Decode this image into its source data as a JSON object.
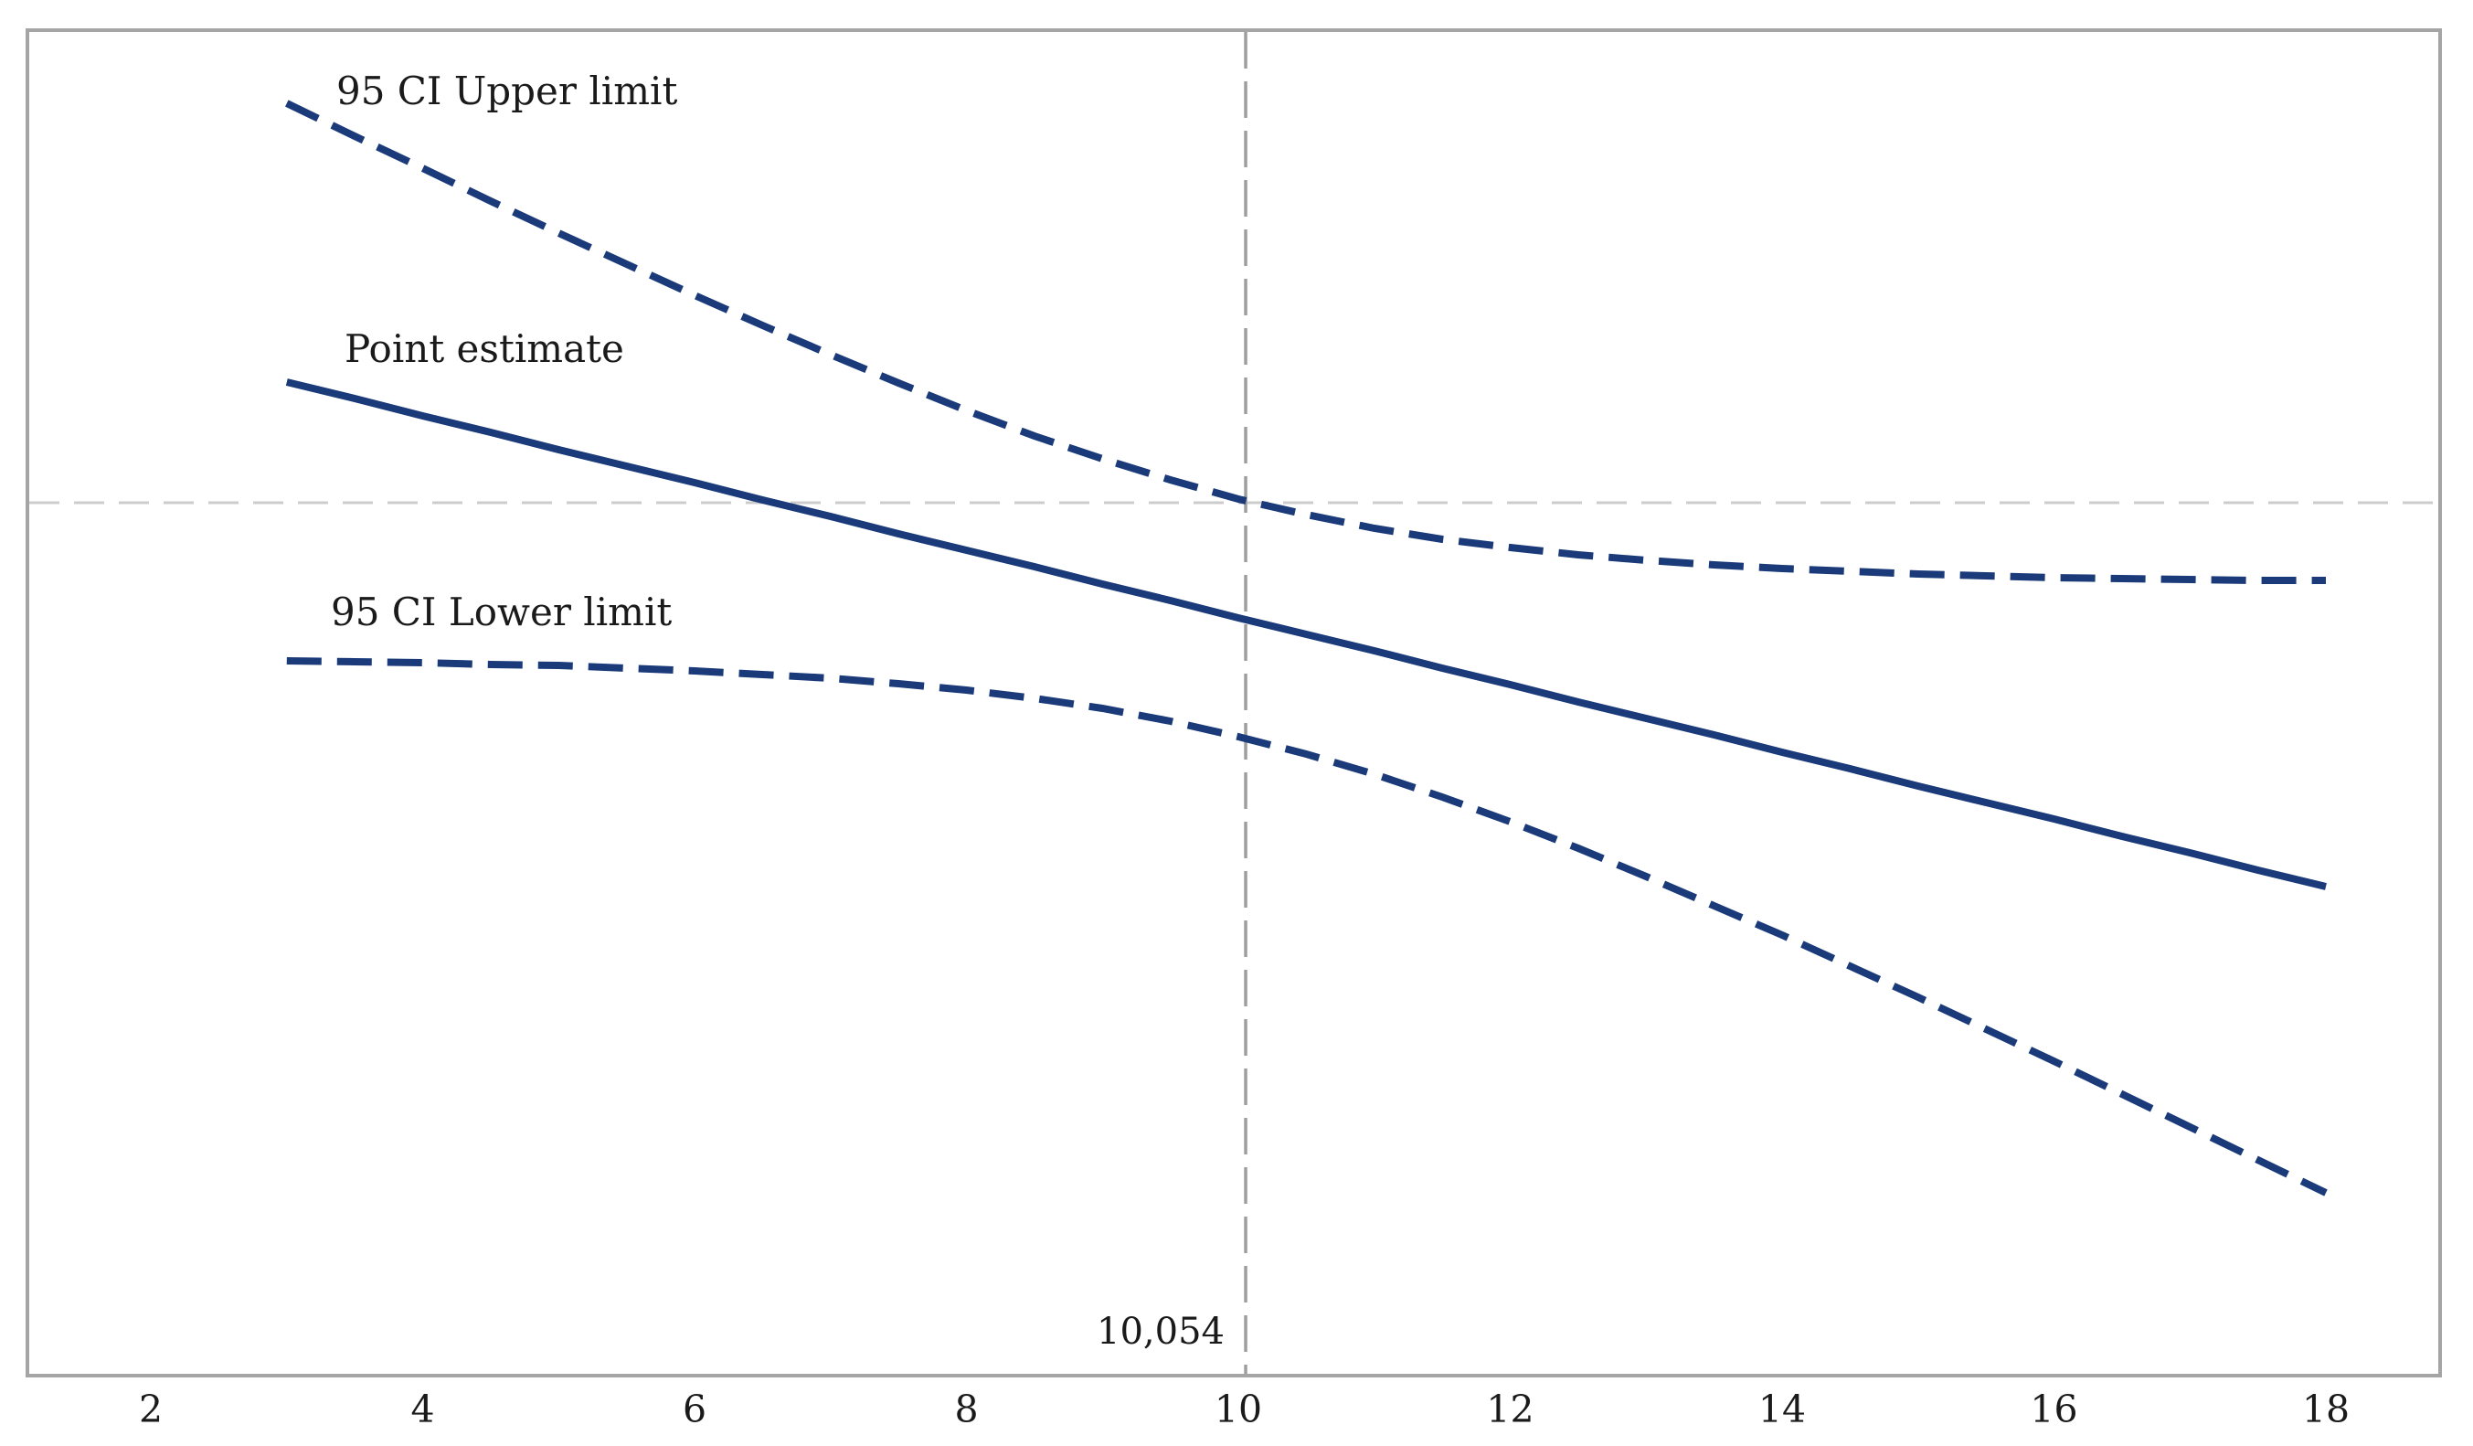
{
  "figure": {
    "labels": {
      "upper_ci": "95 CI Upper limit",
      "point_estimate": "Point estimate",
      "lower_ci": "95 CI Lower limit",
      "threshold": "10,054"
    },
    "colors": {
      "series_navy": "#1a3a7a",
      "reference_gray": "#cccccc",
      "threshold_gray": "#9e9e9e",
      "border_gray": "#a5a5a5",
      "text_black": "#1a1a1a",
      "background": "#ffffff"
    }
  },
  "chart_data": {
    "type": "line",
    "title": "",
    "xlabel": "",
    "ylabel": "",
    "grid": false,
    "legend": "inline-annotations",
    "x_ticks": [
      2,
      4,
      6,
      8,
      10,
      12,
      14,
      16,
      18
    ],
    "xlim": [
      1.08,
      18.9
    ],
    "ylim": [
      -0.955,
      0.517
    ],
    "reference_lines": {
      "horizontal_y": 0,
      "vertical_x": 10.054,
      "vertical_x_label": "10,054"
    },
    "x": [
      3,
      3.5,
      4,
      4.5,
      5,
      5.5,
      6,
      6.5,
      7,
      7.5,
      8,
      8.5,
      9,
      9.5,
      10,
      10.5,
      11,
      11.5,
      12,
      12.5,
      13,
      13.5,
      14,
      14.5,
      15,
      15.5,
      16,
      16.5,
      17,
      17.5,
      18
    ],
    "series": [
      {
        "name": "95 CI Upper limit",
        "style": "dashed",
        "values": [
          0.437,
          0.401,
          0.366,
          0.33,
          0.295,
          0.261,
          0.227,
          0.194,
          0.162,
          0.131,
          0.101,
          0.073,
          0.048,
          0.025,
          0.004,
          -0.013,
          -0.028,
          -0.04,
          -0.049,
          -0.057,
          -0.063,
          -0.068,
          -0.072,
          -0.075,
          -0.078,
          -0.08,
          -0.082,
          -0.083,
          -0.084,
          -0.085,
          -0.085
        ]
      },
      {
        "name": "Point estimate",
        "style": "solid",
        "values": [
          0.132,
          0.114,
          0.095,
          0.077,
          0.058,
          0.04,
          0.022,
          0.003,
          -0.015,
          -0.034,
          -0.052,
          -0.07,
          -0.089,
          -0.107,
          -0.126,
          -0.144,
          -0.162,
          -0.181,
          -0.199,
          -0.218,
          -0.236,
          -0.254,
          -0.273,
          -0.291,
          -0.31,
          -0.328,
          -0.346,
          -0.365,
          -0.383,
          -0.402,
          -0.42
        ]
      },
      {
        "name": "95 CI Lower limit",
        "style": "dashed",
        "values": [
          -0.173,
          -0.174,
          -0.175,
          -0.177,
          -0.178,
          -0.181,
          -0.184,
          -0.188,
          -0.192,
          -0.198,
          -0.205,
          -0.214,
          -0.225,
          -0.239,
          -0.256,
          -0.275,
          -0.297,
          -0.322,
          -0.349,
          -0.378,
          -0.409,
          -0.441,
          -0.473,
          -0.507,
          -0.541,
          -0.576,
          -0.611,
          -0.647,
          -0.683,
          -0.719,
          -0.755
        ]
      }
    ]
  }
}
